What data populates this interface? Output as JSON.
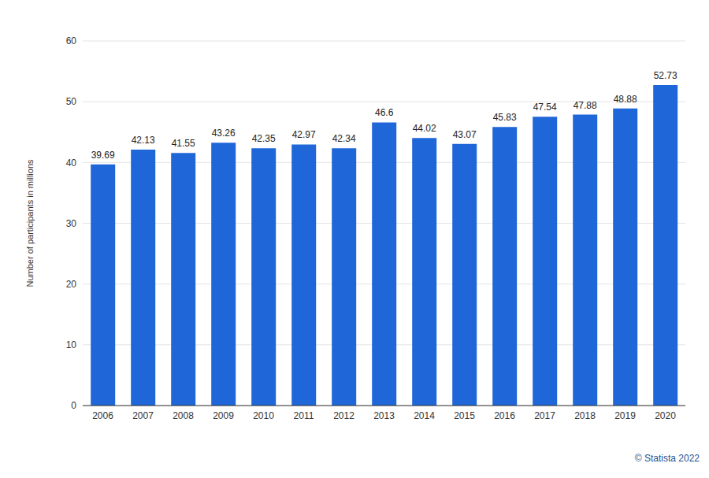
{
  "chart_data": {
    "type": "bar",
    "categories": [
      "2006",
      "2007",
      "2008",
      "2009",
      "2010",
      "2011",
      "2012",
      "2013",
      "2014",
      "2015",
      "2016",
      "2017",
      "2018",
      "2019",
      "2020"
    ],
    "values": [
      39.69,
      42.13,
      41.55,
      43.26,
      42.35,
      42.97,
      42.34,
      46.6,
      44.02,
      43.07,
      45.83,
      47.54,
      47.88,
      48.88,
      52.73
    ],
    "color": "#1f66d8",
    "y_label": "Number of participants in millions",
    "ylim": [
      0,
      60
    ],
    "yticks": [
      0,
      10,
      20,
      30,
      40,
      50,
      60
    ],
    "grid": true,
    "data_labels": true,
    "source": "© Statista 2022"
  }
}
